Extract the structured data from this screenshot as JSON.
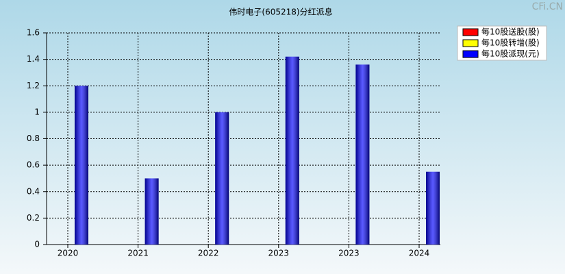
{
  "chart_data": {
    "type": "bar",
    "title": "伟时电子(605218)分红派息",
    "watermark": "CFi.CN",
    "categories": [
      "2020",
      "2021",
      "2022",
      "2023",
      "2023",
      "2024"
    ],
    "series": [
      {
        "name": "每10股送股(股)",
        "color": "#ff0000",
        "values": [
          0,
          0,
          0,
          0,
          0,
          0
        ]
      },
      {
        "name": "每10股转增(股)",
        "color": "#ffff00",
        "values": [
          0,
          0,
          0,
          0,
          0,
          0
        ]
      },
      {
        "name": "每10股派现(元)",
        "color": "#0000ff",
        "values": [
          1.2,
          0.5,
          1.0,
          1.42,
          1.36,
          0.55
        ]
      }
    ],
    "ylim": [
      0,
      1.6
    ],
    "yticks": [
      0,
      0.2,
      0.4,
      0.6,
      0.8,
      1,
      1.2,
      1.4,
      1.6
    ],
    "grid": true,
    "legend": "top-right"
  }
}
